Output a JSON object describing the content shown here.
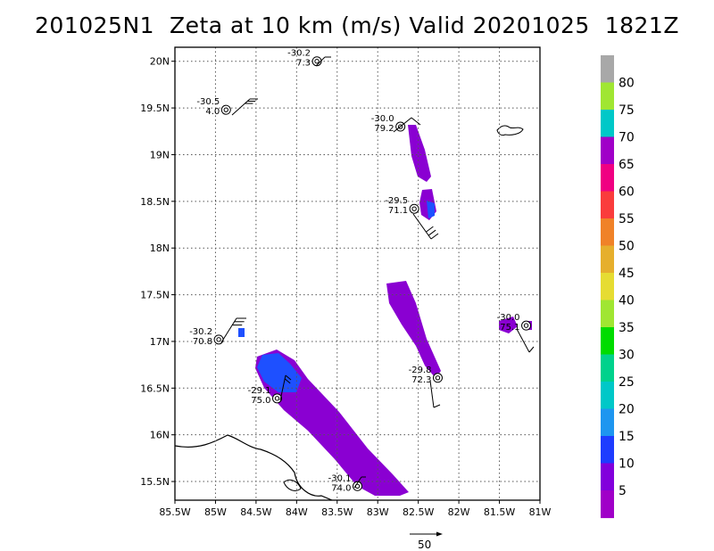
{
  "title": "201025N1  Zeta at 10 km (m/s) Valid 20201025  1821Z",
  "chart_data": {
    "type": "map",
    "title": "201025N1  Zeta at 10 km (m/s) Valid 20201025  1821Z",
    "xlim": [
      -85.5,
      -81.0
    ],
    "ylim": [
      15.3,
      20.15
    ],
    "grid": true,
    "x_ticks": [
      -85.5,
      -85,
      -84.5,
      -84,
      -83.5,
      -83,
      -82.5,
      -82,
      -81.5,
      -81
    ],
    "x_tick_labels": [
      "85.5W",
      "85W",
      "84.5W",
      "84W",
      "83.5W",
      "83W",
      "82.5W",
      "82W",
      "81.5W",
      "81W"
    ],
    "y_ticks": [
      15.5,
      16,
      16.5,
      17,
      17.5,
      18,
      18.5,
      19,
      19.5,
      20
    ],
    "y_tick_labels": [
      "15.5N",
      "16N",
      "16.5N",
      "17N",
      "17.5N",
      "18N",
      "18.5N",
      "19N",
      "19.5N",
      "20N"
    ],
    "colorbar": {
      "levels": [
        80,
        75,
        70,
        65,
        60,
        55,
        50,
        45,
        40,
        35,
        30,
        25,
        20,
        15,
        10,
        5
      ],
      "colors": [
        "#a8a8a8",
        "#a0e632",
        "#00c8c8",
        "#a000c8",
        "#f00082",
        "#fa3c3c",
        "#f08228",
        "#e6af2d",
        "#e6dc32",
        "#a0e632",
        "#00dc00",
        "#00d28c",
        "#00c8c8",
        "#1e96f0",
        "#1e3cff",
        "#8200dc",
        "#a000c8"
      ]
    },
    "stations": [
      {
        "lon": -83.75,
        "lat": 20.0,
        "top": "-30.2",
        "bottom": "7.3"
      },
      {
        "lon": -84.87,
        "lat": 19.48,
        "top": "-30.5",
        "bottom": "4.0"
      },
      {
        "lon": -82.72,
        "lat": 19.3,
        "top": "-30.0",
        "bottom": "79.2"
      },
      {
        "lon": -82.55,
        "lat": 18.42,
        "top": "-29.5",
        "bottom": "71.1"
      },
      {
        "lon": -84.96,
        "lat": 17.02,
        "top": "-30.2",
        "bottom": "70.8"
      },
      {
        "lon": -84.24,
        "lat": 16.39,
        "top": "-29.1",
        "bottom": "75.0"
      },
      {
        "lon": -83.25,
        "lat": 15.45,
        "top": "-30.1",
        "bottom": "74.0"
      },
      {
        "lon": -82.26,
        "lat": 16.61,
        "top": "-29.8",
        "bottom": "72.3"
      },
      {
        "lon": -81.17,
        "lat": 17.17,
        "top": "-30.0",
        "bottom": "75.1"
      }
    ],
    "reference_vector_label": "50"
  }
}
